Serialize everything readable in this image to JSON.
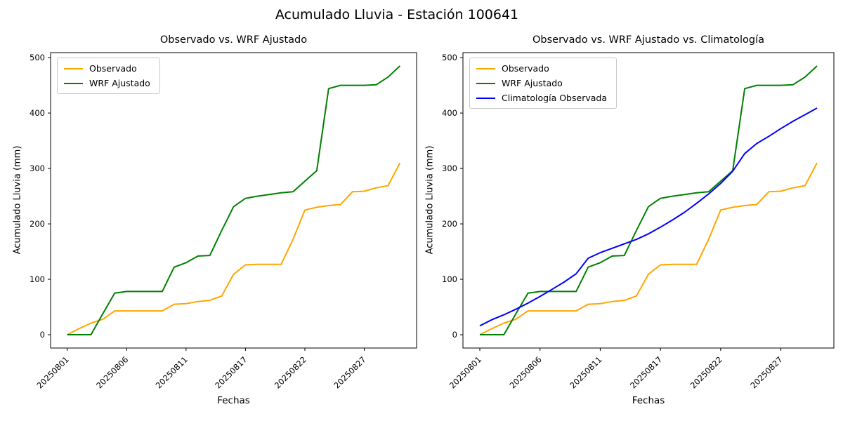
{
  "figure": {
    "suptitle": "Acumulado Lluvia - Estación 100641"
  },
  "colors": {
    "observado": "#ffa500",
    "wrf_ajustado": "#008000",
    "climatologia": "#0000ff",
    "spine": "#000000",
    "text": "#000000",
    "background": "#ffffff"
  },
  "chart_data": [
    {
      "type": "line",
      "title": "Observado vs. WRF Ajustado",
      "xlabel": "Fechas",
      "ylabel": "Acumulado Lluvia (mm)",
      "grid": false,
      "legend_position": "upper left",
      "ylim": [
        -24,
        509
      ],
      "y_ticks": [
        0,
        100,
        200,
        300,
        400,
        500
      ],
      "x_ticks": {
        "indices": [
          0,
          5,
          10,
          15,
          20,
          25
        ],
        "labels": [
          "20250801",
          "20250806",
          "20250811",
          "20250817",
          "20250822",
          "20250827"
        ],
        "rotation": 45
      },
      "categories": [
        "20250801",
        "20250802",
        "20250803",
        "20250804",
        "20250805",
        "20250806",
        "20250807",
        "20250808",
        "20250809",
        "20250810",
        "20250811",
        "20250812",
        "20250813",
        "20250814",
        "20250815",
        "20250817",
        "20250818",
        "20250819",
        "20250820",
        "20250821",
        "20250822",
        "20250823",
        "20250824",
        "20250825",
        "20250826",
        "20250827",
        "20250828",
        "20250829",
        "20250830"
      ],
      "series": [
        {
          "name": "Observado",
          "color_key": "observado",
          "values": [
            0,
            11,
            21,
            28,
            43,
            43,
            43,
            43,
            43,
            55,
            56,
            60,
            62,
            70,
            109,
            126,
            127,
            127,
            127,
            172,
            225,
            230,
            233,
            235,
            258,
            259,
            265,
            269,
            310
          ]
        },
        {
          "name": "WRF Ajustado",
          "color_key": "wrf_ajustado",
          "values": [
            0,
            0,
            0,
            38,
            75,
            78,
            78,
            78,
            78,
            122,
            130,
            142,
            143,
            188,
            231,
            246,
            250,
            253,
            256,
            258,
            277,
            296,
            444,
            450,
            450,
            450,
            451,
            465,
            485
          ]
        }
      ]
    },
    {
      "type": "line",
      "title": "Observado vs. WRF Ajustado vs. Climatología",
      "xlabel": "Fechas",
      "ylabel": "Acumulado Lluvia (mm)",
      "grid": false,
      "legend_position": "upper left",
      "ylim": [
        -24,
        509
      ],
      "y_ticks": [
        0,
        100,
        200,
        300,
        400,
        500
      ],
      "x_ticks": {
        "indices": [
          0,
          5,
          10,
          15,
          20,
          25
        ],
        "labels": [
          "20250801",
          "20250806",
          "20250811",
          "20250817",
          "20250822",
          "20250827"
        ],
        "rotation": 45
      },
      "categories": [
        "20250801",
        "20250802",
        "20250803",
        "20250804",
        "20250805",
        "20250806",
        "20250807",
        "20250808",
        "20250809",
        "20250810",
        "20250811",
        "20250812",
        "20250813",
        "20250814",
        "20250815",
        "20250817",
        "20250818",
        "20250819",
        "20250820",
        "20250821",
        "20250822",
        "20250823",
        "20250824",
        "20250825",
        "20250826",
        "20250827",
        "20250828",
        "20250829",
        "20250830"
      ],
      "series": [
        {
          "name": "Observado",
          "color_key": "observado",
          "values": [
            0,
            11,
            21,
            28,
            43,
            43,
            43,
            43,
            43,
            55,
            56,
            60,
            62,
            70,
            109,
            126,
            127,
            127,
            127,
            172,
            225,
            230,
            233,
            235,
            258,
            259,
            265,
            269,
            310
          ]
        },
        {
          "name": "WRF Ajustado",
          "color_key": "wrf_ajustado",
          "values": [
            0,
            0,
            0,
            38,
            75,
            78,
            78,
            78,
            78,
            122,
            130,
            142,
            143,
            188,
            231,
            246,
            250,
            253,
            256,
            258,
            277,
            296,
            444,
            450,
            450,
            450,
            451,
            465,
            485
          ]
        },
        {
          "name": "Climatología Observada",
          "color_key": "climatologia",
          "values": [
            16,
            27,
            36,
            46,
            57,
            69,
            82,
            95,
            110,
            138,
            148,
            156,
            164,
            172,
            182,
            194,
            207,
            221,
            237,
            254,
            273,
            295,
            327,
            345,
            358,
            372,
            385,
            397,
            409
          ]
        }
      ]
    }
  ]
}
